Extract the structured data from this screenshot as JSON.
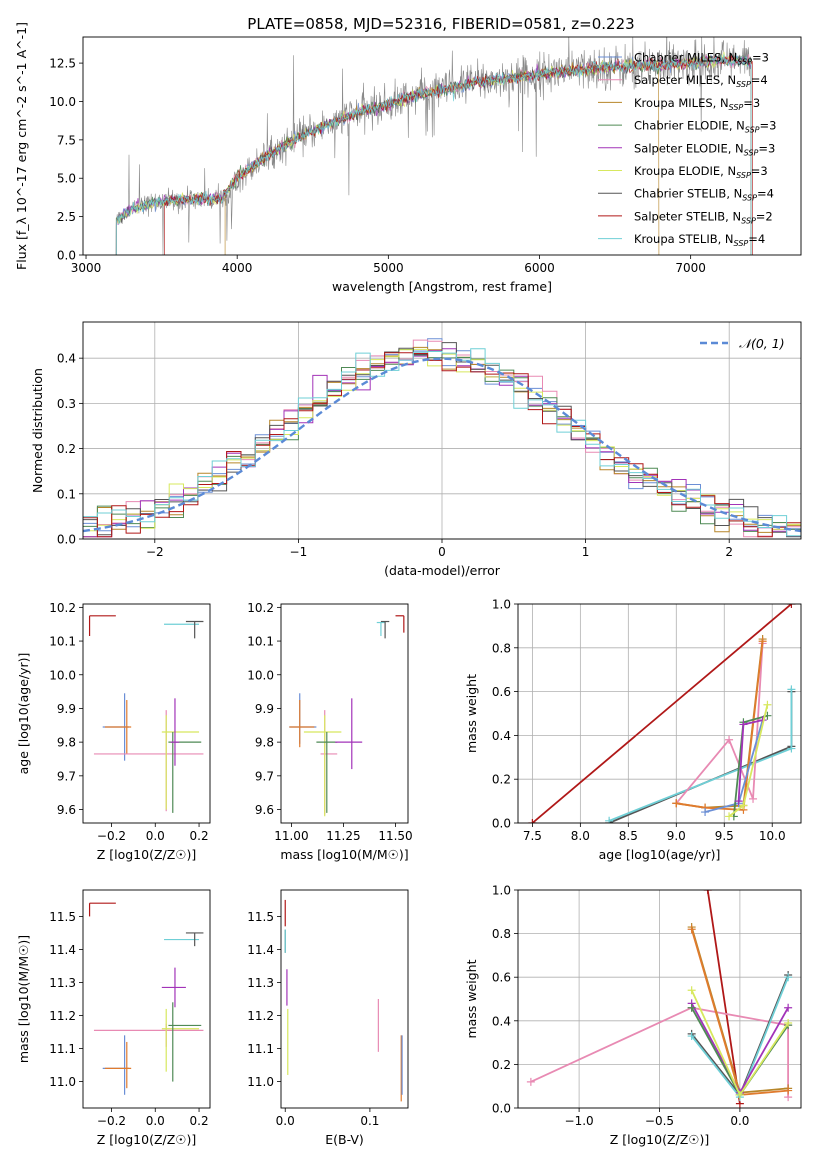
{
  "colors": {
    "chabrier_miles": "#6b8fd6",
    "salpeter_miles": "#e88ab3",
    "kroupa_miles": "#b7862a",
    "chabrier_elodie": "#4f8a55",
    "salpeter_elodie": "#a233b8",
    "kroupa_elodie": "#d7e85e",
    "chabrier_stelib": "#555555",
    "salpeter_stelib": "#b01818",
    "kroupa_stelib": "#6fcfd6",
    "orange": "#e07b2e",
    "gaussian": "#5b8ad6"
  },
  "chart_data": [
    {
      "id": "spectrum",
      "type": "line",
      "title": "PLATE=0858, MJD=52316, FIBERID=0581, z=0.223",
      "xlabel": "wavelength [Angstrom, rest frame]",
      "ylabel": "Flux [f_λ 10^-17 erg cm^-2 s^-1 A^-1]",
      "xlim": [
        2980,
        7730
      ],
      "ylim": [
        0,
        14.2
      ],
      "xticks": [
        3000,
        4000,
        5000,
        6000,
        7000
      ],
      "yticks": [
        0.0,
        2.5,
        5.0,
        7.5,
        10.0,
        12.5
      ],
      "grid": false,
      "legend_position": "right",
      "legend": [
        {
          "label": "Chabrier MILES, N_SSP=3",
          "color_key": "chabrier_miles"
        },
        {
          "label": "Salpeter MILES, N_SSP=4",
          "color_key": "salpeter_miles"
        },
        {
          "label": "Kroupa MILES, N_SSP=3",
          "color_key": "kroupa_miles"
        },
        {
          "label": "Chabrier ELODIE, N_SSP=3",
          "color_key": "chabrier_elodie"
        },
        {
          "label": "Salpeter ELODIE, N_SSP=3",
          "color_key": "salpeter_elodie"
        },
        {
          "label": "Kroupa ELODIE, N_SSP=3",
          "color_key": "kroupa_elodie"
        },
        {
          "label": "Chabrier STELIB, N_SSP=4",
          "color_key": "chabrier_stelib"
        },
        {
          "label": "Salpeter STELIB, N_SSP=2",
          "color_key": "salpeter_stelib"
        },
        {
          "label": "Kroupa STELIB, N_SSP=4",
          "color_key": "kroupa_stelib"
        }
      ],
      "continuum": {
        "x": [
          3200,
          3300,
          3500,
          3700,
          3900,
          4000,
          4200,
          4400,
          4600,
          4800,
          5000,
          5200,
          5400,
          5600,
          5800,
          6000,
          6200,
          6400,
          6600,
          6800,
          7000,
          7200,
          7400
        ],
        "y": [
          2.2,
          3.0,
          3.5,
          3.6,
          3.7,
          5.0,
          6.5,
          7.6,
          8.5,
          9.3,
          9.8,
          10.5,
          10.8,
          11.3,
          11.5,
          11.8,
          12.0,
          12.2,
          12.3,
          12.4,
          12.5,
          12.7,
          12.6
        ]
      },
      "cutoffs": {
        "salpeter_stelib": [
          3520,
          7410
        ],
        "kroupa_miles": [
          3920,
          6790
        ],
        "observed": [
          3200,
          7400
        ]
      }
    },
    {
      "id": "residuals",
      "type": "line",
      "xlabel": "(data-model)/error",
      "ylabel": "Normed distribution",
      "xlim": [
        -2.5,
        2.5
      ],
      "ylim": [
        0,
        0.48
      ],
      "xticks": [
        -2,
        -1,
        0,
        1,
        2
      ],
      "yticks": [
        0.0,
        0.1,
        0.2,
        0.3,
        0.4
      ],
      "grid": true,
      "legend_position": "top-right",
      "legend": [
        {
          "label": "𝒩(0, 1)",
          "color_key": "gaussian",
          "dashed": true
        }
      ],
      "hist_bin_width": 0.1
    },
    {
      "id": "age_vs_z",
      "type": "scatter",
      "xlabel": "Z [log10(Z/Z☉)]",
      "ylabel": "age [log10(age/yr)]",
      "xlim": [
        -0.33,
        0.25
      ],
      "ylim": [
        9.56,
        10.21
      ],
      "xticks": [
        -0.2,
        0.0,
        0.2
      ],
      "yticks": [
        9.6,
        9.7,
        9.8,
        9.9,
        10.0,
        10.1,
        10.2
      ],
      "points": [
        {
          "color_key": "salpeter_stelib",
          "x": -0.3,
          "xerr": [
            0,
            0.12
          ],
          "y": 10.175,
          "yerr": [
            0.06,
            0
          ]
        },
        {
          "color_key": "kroupa_stelib",
          "x": 0.12,
          "xerr": [
            0.08,
            0.08
          ],
          "y": 10.15,
          "yerr": [
            0,
            0
          ]
        },
        {
          "color_key": "chabrier_stelib",
          "x": 0.18,
          "xerr": [
            0.04,
            0.04
          ],
          "y": 10.158,
          "yerr": [
            0.05,
            0
          ]
        },
        {
          "color_key": "chabrier_miles",
          "x": -0.14,
          "xerr": [
            0.1,
            0.02
          ],
          "y": 9.845,
          "yerr": [
            0.1,
            0.1
          ]
        },
        {
          "color_key": "orange",
          "x": -0.13,
          "xerr": [
            0.1,
            0.02
          ],
          "y": 9.845,
          "yerr": [
            0.08,
            0.08
          ]
        },
        {
          "color_key": "salpeter_miles",
          "x": 0.05,
          "xerr": [
            0.33,
            0.17
          ],
          "y": 9.765,
          "yerr": [
            0.17,
            0.13
          ]
        },
        {
          "color_key": "kroupa_elodie",
          "x": 0.05,
          "xerr": [
            0.02,
            0.15
          ],
          "y": 9.83,
          "yerr": [
            0.23,
            0.05
          ]
        },
        {
          "color_key": "chabrier_elodie",
          "x": 0.08,
          "xerr": [
            0.02,
            0.13
          ],
          "y": 9.8,
          "yerr": [
            0.21,
            0.03
          ]
        },
        {
          "color_key": "salpeter_elodie",
          "x": 0.09,
          "xerr": [
            0.02,
            0.02
          ],
          "y": 9.8,
          "yerr": [
            0.07,
            0.13
          ]
        }
      ]
    },
    {
      "id": "age_vs_mass",
      "type": "scatter",
      "xlabel": "mass [log10(M/M☉)]",
      "ylabel": "",
      "xlim": [
        10.95,
        11.56
      ],
      "ylim": [
        9.56,
        10.21
      ],
      "xticks": [
        11.0,
        11.25,
        11.5
      ],
      "yticks": [
        9.6,
        9.7,
        9.8,
        9.9,
        10.0,
        10.1,
        10.2
      ],
      "points": [
        {
          "color_key": "salpeter_stelib",
          "x": 11.54,
          "xerr": [
            0.04,
            0
          ],
          "y": 10.175,
          "yerr": [
            0.05,
            0
          ]
        },
        {
          "color_key": "kroupa_stelib",
          "x": 11.43,
          "xerr": [
            0.02,
            0.02
          ],
          "y": 10.155,
          "yerr": [
            0.04,
            0
          ]
        },
        {
          "color_key": "chabrier_stelib",
          "x": 11.45,
          "xerr": [
            0.02,
            0.02
          ],
          "y": 10.158,
          "yerr": [
            0.05,
            0
          ]
        },
        {
          "color_key": "chabrier_miles",
          "x": 11.04,
          "xerr": [
            0.05,
            0.08
          ],
          "y": 9.845,
          "yerr": [
            0.05,
            0.1
          ]
        },
        {
          "color_key": "orange",
          "x": 11.04,
          "xerr": [
            0.05,
            0.07
          ],
          "y": 9.845,
          "yerr": [
            0.06,
            0.08
          ]
        },
        {
          "color_key": "salpeter_miles",
          "x": 11.16,
          "xerr": [
            0.02,
            0.06
          ],
          "y": 9.765,
          "yerr": [
            0.18,
            0.13
          ]
        },
        {
          "color_key": "kroupa_elodie",
          "x": 11.16,
          "xerr": [
            0.1,
            0.08
          ],
          "y": 9.83,
          "yerr": [
            0.25,
            0.05
          ]
        },
        {
          "color_key": "chabrier_elodie",
          "x": 11.17,
          "xerr": [
            0.05,
            0.05
          ],
          "y": 9.8,
          "yerr": [
            0.21,
            0.03
          ]
        },
        {
          "color_key": "salpeter_elodie",
          "x": 11.29,
          "xerr": [
            0.08,
            0.05
          ],
          "y": 9.8,
          "yerr": [
            0.08,
            0.13
          ]
        }
      ]
    },
    {
      "id": "massweight_vs_age",
      "type": "line",
      "xlabel": "age  [log10(age/yr)]",
      "ylabel": "mass weight",
      "xlim": [
        7.35,
        10.3
      ],
      "ylim": [
        0,
        1
      ],
      "xticks": [
        7.5,
        8.0,
        8.5,
        9.0,
        9.5,
        10.0
      ],
      "yticks": [
        0.0,
        0.2,
        0.4,
        0.6,
        0.8,
        1.0
      ],
      "grid": true,
      "series": [
        {
          "color_key": "salpeter_stelib",
          "x": [
            7.5,
            10.2
          ],
          "y": [
            0.0,
            1.0
          ]
        },
        {
          "color_key": "chabrier_stelib",
          "x": [
            8.3,
            10.2,
            10.2
          ],
          "y": [
            0.0,
            0.35,
            0.6
          ]
        },
        {
          "color_key": "kroupa_stelib",
          "x": [
            8.3,
            10.2,
            10.2
          ],
          "y": [
            0.01,
            0.34,
            0.61
          ]
        },
        {
          "color_key": "salpeter_miles",
          "x": [
            9.0,
            9.55,
            9.8,
            9.9
          ],
          "y": [
            0.09,
            0.38,
            0.11,
            0.82
          ]
        },
        {
          "color_key": "kroupa_miles",
          "x": [
            9.0,
            9.3,
            9.7,
            9.9
          ],
          "y": [
            0.09,
            0.07,
            0.08,
            0.84
          ]
        },
        {
          "color_key": "orange",
          "x": [
            9.0,
            9.3,
            9.7,
            9.9
          ],
          "y": [
            0.09,
            0.07,
            0.06,
            0.83
          ]
        },
        {
          "color_key": "chabrier_miles",
          "x": [
            9.3,
            9.65,
            9.9
          ],
          "y": [
            0.05,
            0.09,
            0.47
          ]
        },
        {
          "color_key": "chabrier_elodie",
          "x": [
            9.6,
            9.7,
            9.95
          ],
          "y": [
            0.03,
            0.46,
            0.49
          ]
        },
        {
          "color_key": "salpeter_elodie",
          "x": [
            9.65,
            9.7,
            9.9
          ],
          "y": [
            0.1,
            0.45,
            0.47
          ]
        },
        {
          "color_key": "kroupa_elodie",
          "x": [
            9.55,
            9.7,
            9.95
          ],
          "y": [
            0.03,
            0.08,
            0.54
          ]
        }
      ]
    },
    {
      "id": "mass_vs_z",
      "type": "scatter",
      "xlabel": "Z [log10(Z/Z☉)]",
      "ylabel": "mass [log10(M/M☉)]",
      "xlim": [
        -0.33,
        0.25
      ],
      "ylim": [
        10.92,
        11.58
      ],
      "xticks": [
        -0.2,
        0.0,
        0.2
      ],
      "yticks": [
        11.0,
        11.1,
        11.2,
        11.3,
        11.4,
        11.5
      ],
      "points": [
        {
          "color_key": "salpeter_stelib",
          "x": -0.3,
          "xerr": [
            0,
            0.12
          ],
          "y": 11.54,
          "yerr": [
            0.04,
            0
          ]
        },
        {
          "color_key": "kroupa_stelib",
          "x": 0.12,
          "xerr": [
            0.08,
            0.08
          ],
          "y": 11.43,
          "yerr": [
            0,
            0
          ]
        },
        {
          "color_key": "chabrier_stelib",
          "x": 0.18,
          "xerr": [
            0.04,
            0.04
          ],
          "y": 11.45,
          "yerr": [
            0.04,
            0
          ]
        },
        {
          "color_key": "chabrier_miles",
          "x": -0.14,
          "xerr": [
            0.1,
            0.02
          ],
          "y": 11.04,
          "yerr": [
            0.08,
            0.1
          ]
        },
        {
          "color_key": "orange",
          "x": -0.13,
          "xerr": [
            0.1,
            0.02
          ],
          "y": 11.04,
          "yerr": [
            0.06,
            0.08
          ]
        },
        {
          "color_key": "salpeter_miles",
          "x": 0.05,
          "xerr": [
            0.33,
            0.17
          ],
          "y": 11.155,
          "yerr": [
            0.05,
            0.02
          ]
        },
        {
          "color_key": "kroupa_elodie",
          "x": 0.05,
          "xerr": [
            0.02,
            0.15
          ],
          "y": 11.16,
          "yerr": [
            0.13,
            0.06
          ]
        },
        {
          "color_key": "chabrier_elodie",
          "x": 0.08,
          "xerr": [
            0.02,
            0.13
          ],
          "y": 11.17,
          "yerr": [
            0.17,
            0.07
          ]
        },
        {
          "color_key": "salpeter_elodie",
          "x": 0.09,
          "xerr": [
            0.06,
            0.05
          ],
          "y": 11.285,
          "yerr": [
            0.06,
            0.06
          ]
        }
      ]
    },
    {
      "id": "mass_vs_ebv",
      "type": "scatter",
      "xlabel": "E(B-V)",
      "ylabel": "",
      "xlim": [
        -0.005,
        0.145
      ],
      "ylim": [
        10.92,
        11.58
      ],
      "xticks": [
        0.0,
        0.1
      ],
      "yticks": [
        11.0,
        11.1,
        11.2,
        11.3,
        11.4,
        11.5
      ],
      "points": [
        {
          "color_key": "salpeter_stelib",
          "x": 0.0,
          "xerr": [
            0,
            0
          ],
          "y": 11.5,
          "yerr": [
            0.03,
            0.05
          ]
        },
        {
          "color_key": "chabrier_stelib",
          "x": 0.0,
          "xerr": [
            0,
            0
          ],
          "y": 11.43,
          "yerr": [
            0.04,
            0.03
          ]
        },
        {
          "color_key": "kroupa_stelib",
          "x": 0.0,
          "xerr": [
            0,
            0
          ],
          "y": 11.42,
          "yerr": [
            0.03,
            0.04
          ]
        },
        {
          "color_key": "salpeter_elodie",
          "x": 0.002,
          "xerr": [
            0,
            0
          ],
          "y": 11.29,
          "yerr": [
            0.06,
            0.05
          ]
        },
        {
          "color_key": "kroupa_elodie",
          "x": 0.003,
          "xerr": [
            0,
            0
          ],
          "y": 11.12,
          "yerr": [
            0.1,
            0.1
          ]
        },
        {
          "color_key": "salpeter_miles",
          "x": 0.11,
          "xerr": [
            0,
            0
          ],
          "y": 11.17,
          "yerr": [
            0.08,
            0.08
          ]
        },
        {
          "color_key": "orange",
          "x": 0.137,
          "xerr": [
            0,
            0
          ],
          "y": 11.04,
          "yerr": [
            0.1,
            0.1
          ]
        },
        {
          "color_key": "chabrier_miles",
          "x": 0.138,
          "xerr": [
            0,
            0
          ],
          "y": 11.04,
          "yerr": [
            0.08,
            0.1
          ]
        }
      ]
    },
    {
      "id": "massweight_vs_z",
      "type": "line",
      "xlabel": "Z [log10(Z/Z☉)]",
      "ylabel": "mass weight",
      "xlim": [
        -1.38,
        0.38
      ],
      "ylim": [
        0,
        1
      ],
      "xticks": [
        -1.0,
        -0.5,
        0.0
      ],
      "yticks": [
        0.0,
        0.2,
        0.4,
        0.6,
        0.8,
        1.0
      ],
      "grid": true,
      "series": [
        {
          "color_key": "salpeter_stelib",
          "x": [
            -0.2,
            0.0
          ],
          "y": [
            1.0,
            0.02
          ]
        },
        {
          "color_key": "salpeter_miles",
          "x": [
            -1.3,
            -0.3,
            0.3,
            0.3
          ],
          "y": [
            0.12,
            0.46,
            0.38,
            0.05
          ]
        },
        {
          "color_key": "kroupa_miles",
          "x": [
            -0.3,
            0.0,
            0.3
          ],
          "y": [
            0.83,
            0.07,
            0.09
          ]
        },
        {
          "color_key": "orange",
          "x": [
            -0.3,
            0.0,
            0.3
          ],
          "y": [
            0.82,
            0.06,
            0.08
          ]
        },
        {
          "color_key": "chabrier_stelib",
          "x": [
            -0.3,
            0.0,
            0.3
          ],
          "y": [
            0.34,
            0.06,
            0.61
          ]
        },
        {
          "color_key": "kroupa_stelib",
          "x": [
            -0.3,
            0.0,
            0.3
          ],
          "y": [
            0.33,
            0.05,
            0.6
          ]
        },
        {
          "color_key": "salpeter_elodie",
          "x": [
            -0.3,
            0.0,
            0.3
          ],
          "y": [
            0.48,
            0.07,
            0.46
          ]
        },
        {
          "color_key": "chabrier_elodie",
          "x": [
            -0.3,
            0.0,
            0.3
          ],
          "y": [
            0.46,
            0.06,
            0.38
          ]
        },
        {
          "color_key": "kroupa_elodie",
          "x": [
            -0.3,
            0.0,
            0.3
          ],
          "y": [
            0.54,
            0.06,
            0.39
          ]
        }
      ]
    }
  ]
}
